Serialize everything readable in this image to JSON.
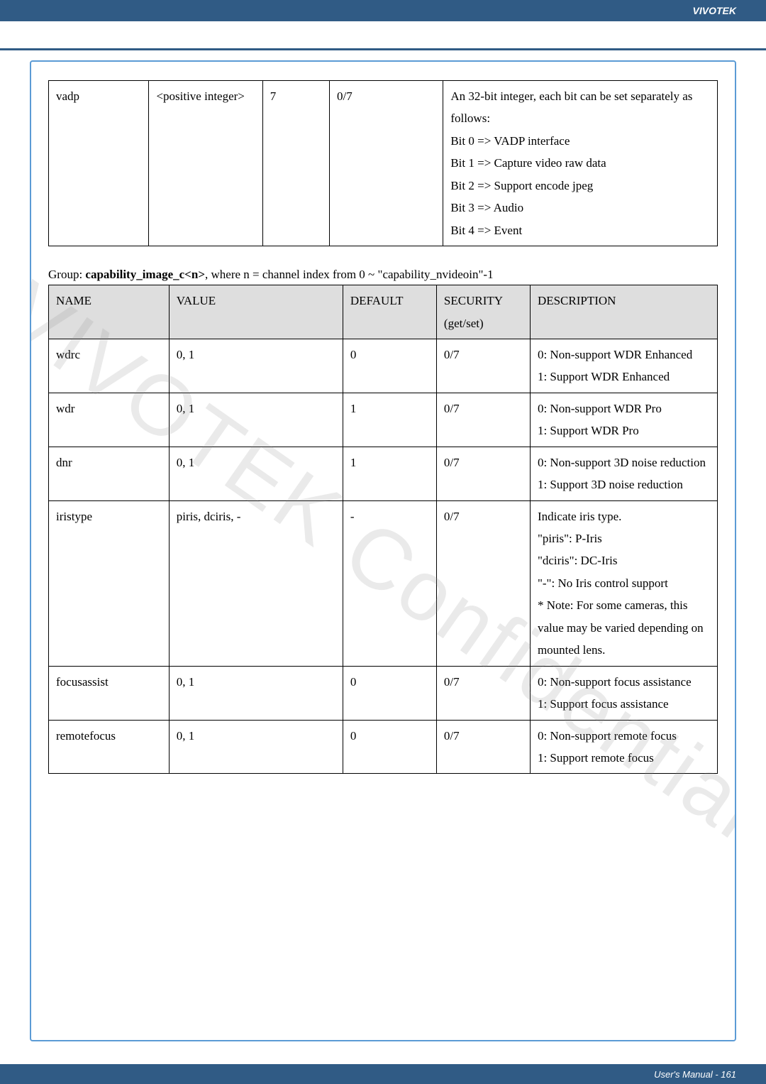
{
  "brand": "VIVOTEK",
  "footer": "User's Manual - 161",
  "watermark": "VIVOTEK Confidential",
  "table1": {
    "row": {
      "name": "vadp",
      "value": "<positive integer>",
      "default": "7",
      "security": "0/7",
      "description": "An 32-bit integer, each bit can be set separately as follows:\nBit 0 => VADP interface\nBit 1 => Capture video raw data\nBit 2 => Support encode jpeg\nBit 3 => Audio\nBit 4 => Event"
    }
  },
  "group_prefix": "Group: ",
  "group_bold": "capability_image_c<n>",
  "group_suffix": ", where n = channel index from 0 ~ \"capability_nvideoin\"-1",
  "table2": {
    "headers": {
      "name": "NAME",
      "value": "VALUE",
      "default": "DEFAULT",
      "security": "SECURITY (get/set)",
      "description": "DESCRIPTION"
    },
    "rows": [
      {
        "name": "wdrc",
        "value": "0, 1",
        "default": "0",
        "security": "0/7",
        "description": "0: Non-support WDR Enhanced\n1: Support WDR Enhanced"
      },
      {
        "name": "wdr",
        "value": "0, 1",
        "default": "1",
        "security": "0/7",
        "description": "0: Non-support WDR Pro\n1: Support WDR Pro"
      },
      {
        "name": "dnr",
        "value": "0, 1",
        "default": "1",
        "security": "0/7",
        "description": "0: Non-support 3D noise reduction\n1: Support 3D noise reduction"
      },
      {
        "name": "iristype",
        "value": "piris, dciris, -",
        "default": "-",
        "security": "0/7",
        "description": "Indicate iris type.\n\"piris\": P-Iris\n\"dciris\": DC-Iris\n\"-\": No Iris control support\n* Note: For some cameras, this value may be varied depending on mounted lens."
      },
      {
        "name": "focusassist",
        "value": "0, 1",
        "default": "0",
        "security": "0/7",
        "description": "0: Non-support focus assistance\n1: Support focus assistance"
      },
      {
        "name": "remotefocus",
        "value": "0, 1",
        "default": "0",
        "security": "0/7",
        "description": "0: Non-support remote focus\n1: Support remote focus"
      }
    ]
  }
}
